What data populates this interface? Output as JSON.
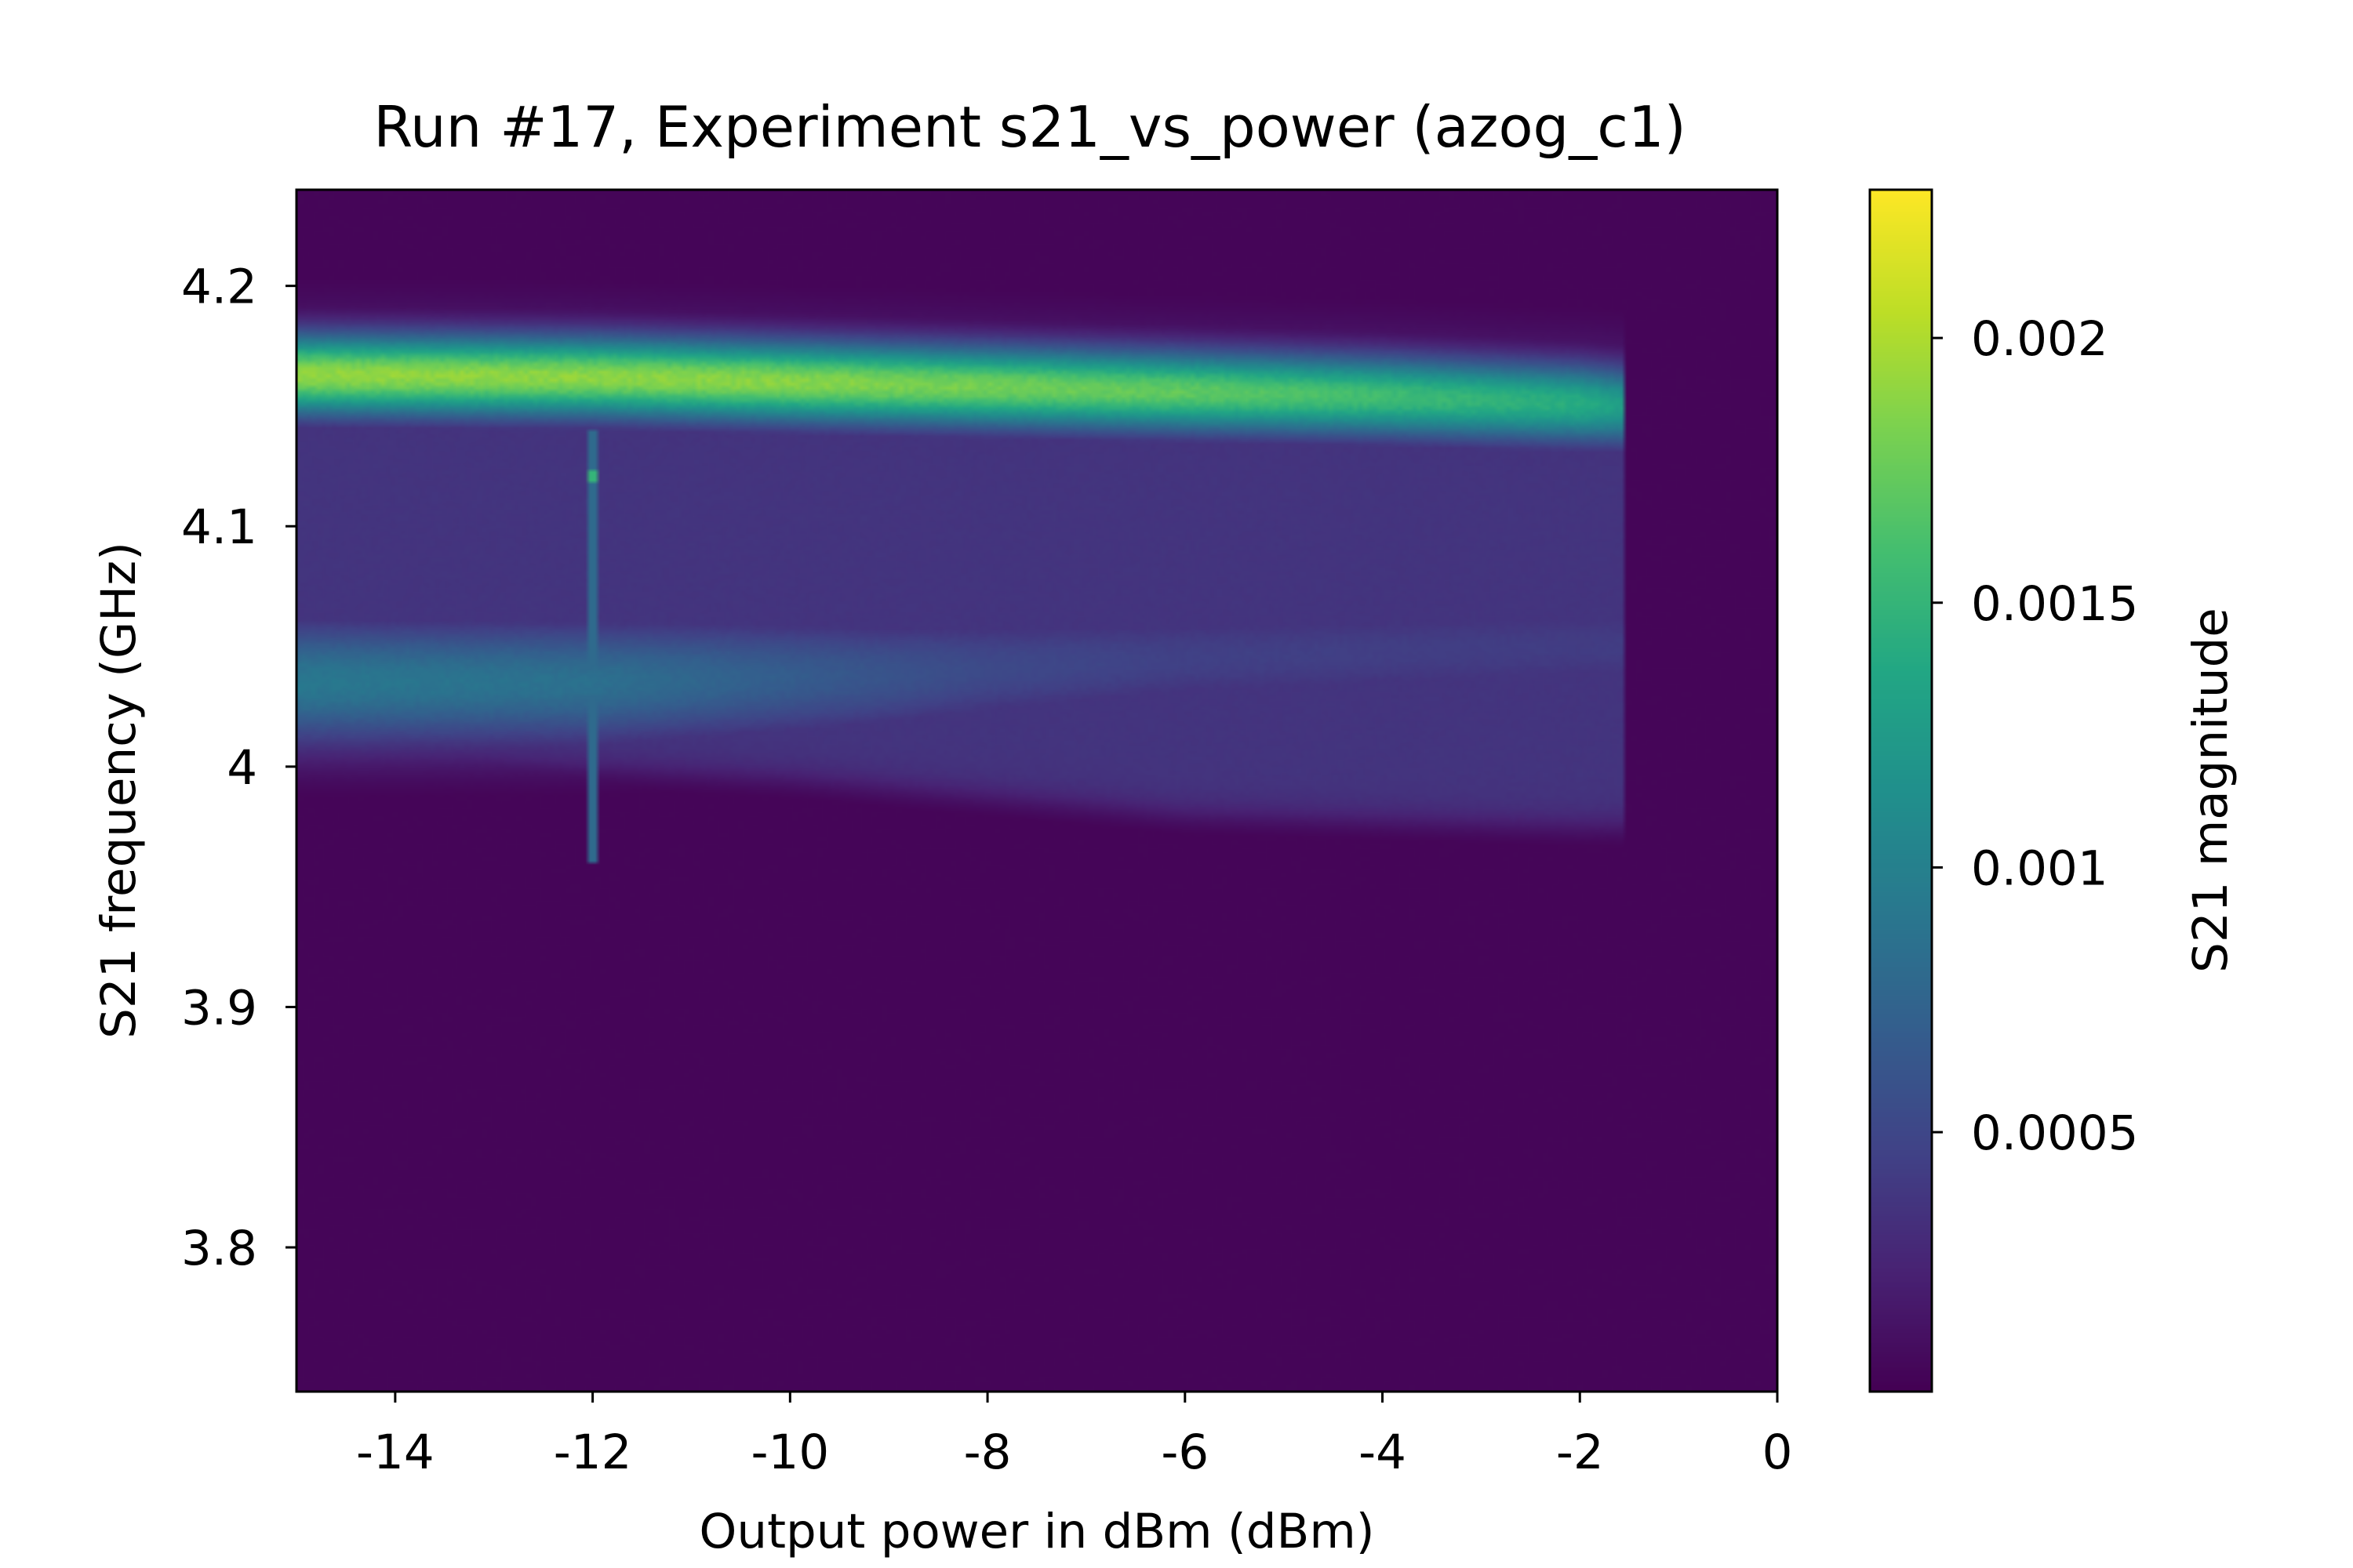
{
  "chart_data": {
    "type": "heatmap",
    "title": "Run #17, Experiment s21_vs_power (azog_c1)",
    "xlabel": "Output power in dBm (dBm)",
    "ylabel": "S21 frequency (GHz)",
    "colorbar_label": "S21 magnitude",
    "colormap": "viridis",
    "xlim": [
      -15,
      0
    ],
    "ylim": [
      3.74,
      4.24
    ],
    "clim": [
      1e-05,
      0.00228
    ],
    "x_ticks": [
      -14,
      -12,
      -10,
      -8,
      -6,
      -4,
      -2,
      0
    ],
    "x_tick_labels": [
      "-14",
      "-12",
      "-10",
      "-8",
      "-6",
      "-4",
      "-2",
      "0"
    ],
    "y_ticks": [
      3.8,
      3.9,
      4.0,
      4.1,
      4.2
    ],
    "y_tick_labels": [
      "3.8",
      "3.9",
      "4",
      "4.1",
      "4.2"
    ],
    "colorbar_ticks": [
      0.0005,
      0.001,
      0.0015,
      0.002
    ],
    "colorbar_tick_labels": [
      "0.0005",
      "0.001",
      "0.0015",
      "0.002"
    ],
    "grid": false,
    "features": {
      "upper_resonance": {
        "freq_at_power": [
          [
            -15,
            4.163
          ],
          [
            -12,
            4.162
          ],
          [
            -8,
            4.158
          ],
          [
            -4,
            4.154
          ],
          [
            -2,
            4.151
          ],
          [
            -1.6,
            4.15
          ]
        ],
        "peak_magnitude_at_power": [
          [
            -15,
            0.00192
          ],
          [
            -10,
            0.00188
          ],
          [
            -6,
            0.00172
          ],
          [
            -4,
            0.00158
          ],
          [
            -2,
            0.00142
          ],
          [
            -1.6,
            0.0013
          ]
        ],
        "fwhm_ghz": 0.028
      },
      "lower_resonance": {
        "freq_at_power": [
          [
            -15,
            4.035
          ],
          [
            -12,
            4.035
          ],
          [
            -9,
            4.038
          ],
          [
            -6,
            4.045
          ],
          [
            -2,
            4.05
          ]
        ],
        "peak_magnitude_at_power": [
          [
            -15,
            0.00092
          ],
          [
            -12,
            0.00085
          ],
          [
            -10,
            0.00068
          ],
          [
            -8,
            0.00052
          ],
          [
            -6,
            0.00045
          ],
          [
            -2,
            0.00042
          ]
        ],
        "fwhm_ghz": 0.045
      },
      "passband": {
        "low_edge_at_power": [
          [
            -15,
            4.005
          ],
          [
            -10,
            3.995
          ],
          [
            -6,
            3.98
          ],
          [
            -2,
            3.975
          ],
          [
            -1.6,
            3.975
          ]
        ],
        "magnitude": 0.00036
      },
      "background_magnitude": 4e-05,
      "cutoff_power": -1.55,
      "glitch": {
        "power": -12,
        "freq_range": [
          3.96,
          4.14
        ],
        "spot_freq": 4.121
      }
    }
  }
}
